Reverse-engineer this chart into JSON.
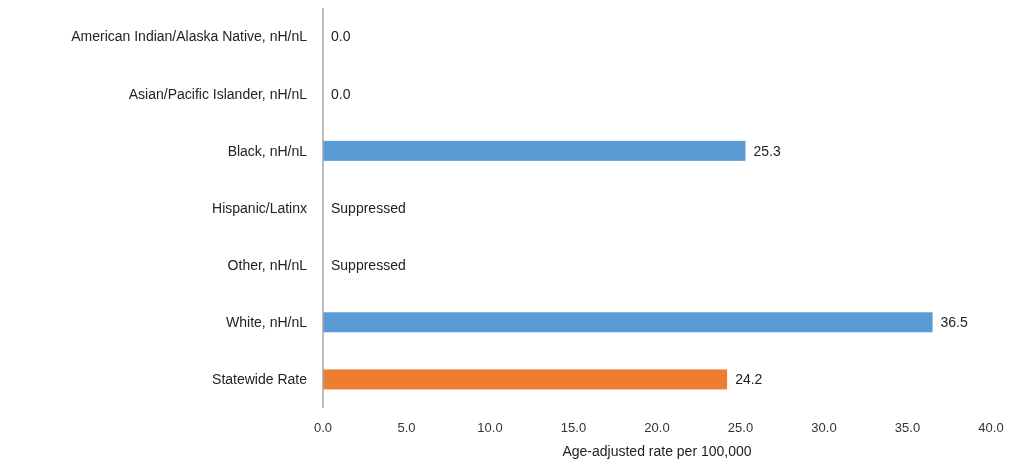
{
  "chart_data": {
    "type": "bar",
    "orientation": "horizontal",
    "xlabel": "Age-adjusted rate per 100,000",
    "categories": [
      "American Indian/Alaska Native, nH/nL",
      "Asian/Pacific Islander, nH/nL",
      "Black, nH/nL",
      "Hispanic/Latinx",
      "Other, nH/nL",
      "White, nH/nL",
      "Statewide Rate"
    ],
    "values": [
      0.0,
      0.0,
      25.3,
      null,
      null,
      36.5,
      24.2
    ],
    "value_labels": [
      "0.0",
      "0.0",
      "25.3",
      "Suppressed",
      "Suppressed",
      "36.5",
      "24.2"
    ],
    "colors": [
      "#5b9bd5",
      "#5b9bd5",
      "#5b9bd5",
      null,
      null,
      "#5b9bd5",
      "#ed7d31"
    ],
    "xlim": [
      0,
      40
    ],
    "xticks": [
      {
        "value": 0,
        "label": "0.0"
      },
      {
        "value": 5,
        "label": "5.0"
      },
      {
        "value": 10,
        "label": "10.0"
      },
      {
        "value": 15,
        "label": "15.0"
      },
      {
        "value": 20,
        "label": "20.0"
      },
      {
        "value": 25,
        "label": "25.0"
      },
      {
        "value": 30,
        "label": "30.0"
      },
      {
        "value": 35,
        "label": "35.0"
      },
      {
        "value": 40,
        "label": "40.0"
      }
    ],
    "grid": false
  }
}
